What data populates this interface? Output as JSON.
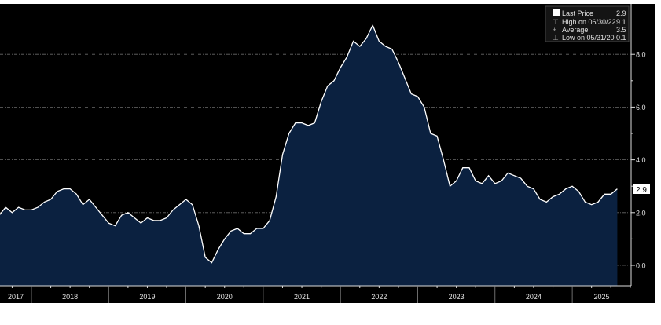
{
  "chart_data": {
    "type": "area",
    "title": "",
    "xlabel": "",
    "ylabel": "",
    "x_tick_labels": [
      "2017",
      "2018",
      "2019",
      "2020",
      "2021",
      "2022",
      "2023",
      "2024",
      "2025"
    ],
    "y_ticks": [
      0,
      2,
      4,
      6,
      8
    ],
    "y_tick_labels": [
      "0.0",
      "2.0",
      "4.0",
      "6.0",
      "8.0"
    ],
    "ylim": [
      -0.7,
      9.6
    ],
    "x_start": "2017-08",
    "x_end": "2025-08",
    "frequency": "monthly",
    "grid": true,
    "y_axis_side": "right",
    "legend_position": "top-right",
    "colors": {
      "background": "#000000",
      "fill": "#0b2140",
      "line": "#ffffff",
      "grid": "#6a6a6a",
      "text": "#e0e0e0"
    },
    "series": [
      {
        "name": "Last Price",
        "values": [
          1.9,
          2.2,
          2.0,
          2.2,
          2.1,
          2.1,
          2.2,
          2.4,
          2.5,
          2.8,
          2.9,
          2.9,
          2.7,
          2.3,
          2.5,
          2.2,
          1.9,
          1.6,
          1.5,
          1.9,
          2.0,
          1.8,
          1.6,
          1.8,
          1.7,
          1.7,
          1.8,
          2.1,
          2.3,
          2.5,
          2.3,
          1.5,
          0.3,
          0.1,
          0.6,
          1.0,
          1.3,
          1.4,
          1.2,
          1.2,
          1.4,
          1.4,
          1.7,
          2.6,
          4.2,
          5.0,
          5.4,
          5.4,
          5.3,
          5.4,
          6.2,
          6.8,
          7.0,
          7.5,
          7.9,
          8.5,
          8.3,
          8.6,
          9.1,
          8.5,
          8.3,
          8.2,
          7.7,
          7.1,
          6.5,
          6.4,
          6.0,
          5.0,
          4.9,
          4.0,
          3.0,
          3.2,
          3.7,
          3.7,
          3.2,
          3.1,
          3.4,
          3.1,
          3.2,
          3.5,
          3.4,
          3.3,
          3.0,
          2.9,
          2.5,
          2.4,
          2.6,
          2.7,
          2.9,
          3.0,
          2.8,
          2.4,
          2.3,
          2.4,
          2.7,
          2.7,
          2.9
        ]
      }
    ],
    "last_value_label": "2.9",
    "legend": [
      {
        "label": "Last Price",
        "value": "2.9"
      },
      {
        "label": "High on 06/30/22",
        "value": "9.1"
      },
      {
        "label": "Average",
        "value": "3.5"
      },
      {
        "label": "Low on 05/31/20",
        "value": "0.1"
      }
    ]
  }
}
